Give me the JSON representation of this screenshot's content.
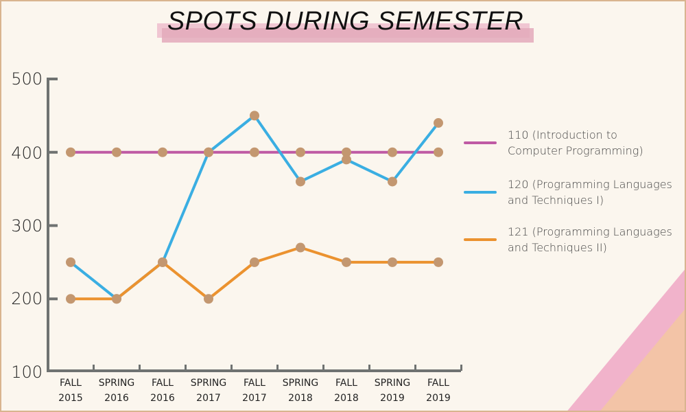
{
  "title": "SPOTS DURING SEMESTER",
  "colors": {
    "background": "#fbf6ee",
    "border": "#d9b48f",
    "axis": "#6f7271",
    "marker": "#c39770",
    "series_110": "#bf5aa4",
    "series_120": "#3aaee2",
    "series_121": "#eb922f",
    "corner_pink": "#f1b3cb",
    "corner_peach": "#f3c4a7"
  },
  "y_axis": {
    "ticks": [
      "500",
      "400",
      "300",
      "200",
      "100"
    ]
  },
  "x_axis": {
    "labels": [
      {
        "line1": "FALL",
        "line2": "2015"
      },
      {
        "line1": "SPRING",
        "line2": "2016"
      },
      {
        "line1": "FALL",
        "line2": "2016"
      },
      {
        "line1": "SPRING",
        "line2": "2017"
      },
      {
        "line1": "FALL",
        "line2": "2017"
      },
      {
        "line1": "SPRING",
        "line2": "2018"
      },
      {
        "line1": "FALL",
        "line2": "2018"
      },
      {
        "line1": "SPRING",
        "line2": "2019"
      },
      {
        "line1": "FALL",
        "line2": "2019"
      }
    ]
  },
  "legend": [
    {
      "label": "110 (Introduction to\nComputer Programming)",
      "color": "#bf5aa4"
    },
    {
      "label": "120 (Programming Languages\nand Techniques I)",
      "color": "#3aaee2"
    },
    {
      "label": "121 (Programming Languages\nand Techniques II)",
      "color": "#eb922f"
    }
  ],
  "chart_data": {
    "type": "line",
    "title": "SPOTS DURING SEMESTER",
    "xlabel": "",
    "ylabel": "",
    "categories": [
      "FALL 2015",
      "SPRING 2016",
      "FALL 2016",
      "SPRING 2017",
      "FALL 2017",
      "SPRING 2018",
      "FALL 2018",
      "SPRING 2019",
      "FALL 2019"
    ],
    "series": [
      {
        "name": "110 (Introduction to Computer Programming)",
        "color": "#bf5aa4",
        "values": [
          400,
          400,
          400,
          400,
          400,
          400,
          400,
          400,
          400
        ]
      },
      {
        "name": "120 (Programming Languages and Techniques I)",
        "color": "#3aaee2",
        "values": [
          250,
          200,
          250,
          400,
          450,
          360,
          390,
          360,
          440
        ]
      },
      {
        "name": "121 (Programming Languages and Techniques II)",
        "color": "#eb922f",
        "values": [
          200,
          200,
          250,
          200,
          250,
          270,
          250,
          250,
          250
        ]
      }
    ],
    "ylim": [
      100,
      500
    ],
    "yticks": [
      100,
      200,
      300,
      400,
      500
    ],
    "grid": false,
    "legend_position": "right"
  }
}
